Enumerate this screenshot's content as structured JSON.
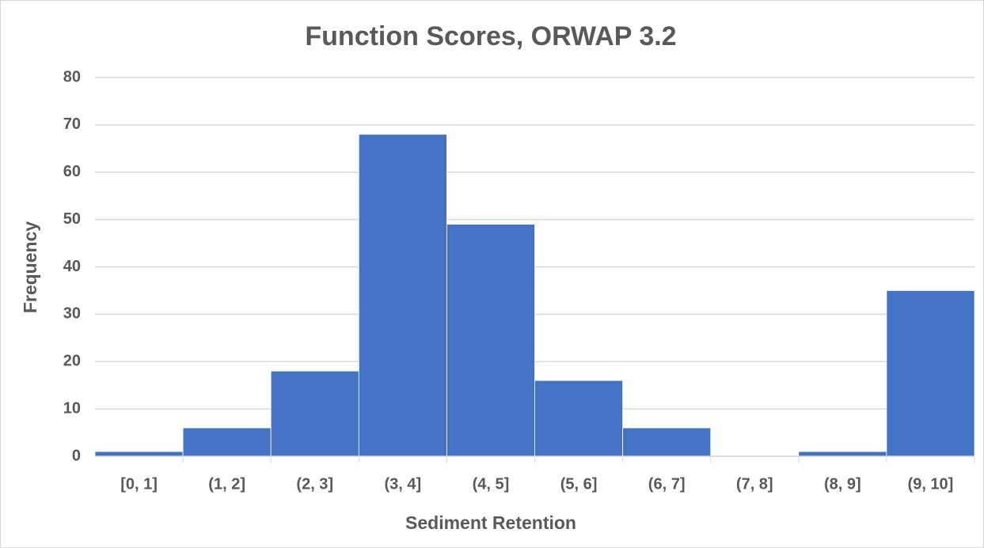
{
  "chart_data": {
    "type": "bar",
    "title": "Function Scores, ORWAP 3.2",
    "x_label": "Sediment Retention",
    "y_label": "Frequency",
    "categories": [
      "[0, 1]",
      "(1, 2]",
      "(2, 3]",
      "(3, 4]",
      "(4, 5]",
      "(5, 6]",
      "(6, 7]",
      "(7, 8]",
      "(8, 9]",
      "(9, 10]"
    ],
    "values": [
      1,
      6,
      18,
      68,
      49,
      16,
      6,
      0,
      1,
      35
    ],
    "color": "#4472c4",
    "ylim": [
      0,
      80
    ],
    "yticks": [
      0,
      10,
      20,
      30,
      40,
      50,
      60,
      70,
      80
    ],
    "grid": true
  }
}
